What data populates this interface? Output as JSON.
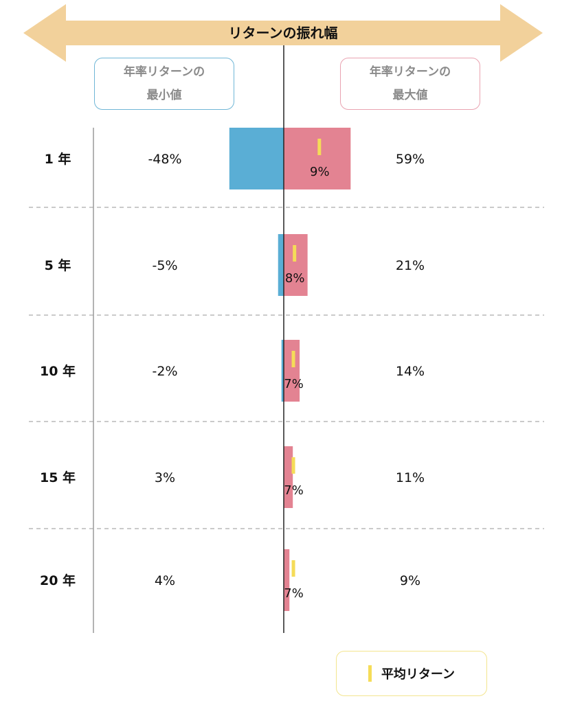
{
  "banner": {
    "title": "リターンの振れ幅"
  },
  "headers": {
    "min_line1": "年率リターンの",
    "min_line2": "最小値",
    "max_line1": "年率リターンの",
    "max_line2": "最大値"
  },
  "legend": {
    "label": "平均リターン"
  },
  "colors": {
    "banner": "#f2d19b",
    "min_bar": "#5aaed5",
    "max_bar": "#e38392",
    "avg_marker": "#f5dc58",
    "min_border": "#6fb6d6",
    "max_border": "#e9a2b0"
  },
  "chart_data": {
    "type": "bar",
    "orientation": "horizontal-diverging",
    "title": "リターンの振れ幅",
    "categories": [
      "1 年",
      "5 年",
      "10 年",
      "15 年",
      "20 年"
    ],
    "series": [
      {
        "name": "年率リターンの最小値",
        "values": [
          -48,
          -5,
          -2,
          3,
          4
        ],
        "labels": [
          "-48%",
          "-5%",
          "-2%",
          "3%",
          "4%"
        ]
      },
      {
        "name": "年率リターンの最大値",
        "values": [
          59,
          21,
          14,
          11,
          9
        ],
        "labels": [
          "59%",
          "21%",
          "14%",
          "11%",
          "9%"
        ]
      },
      {
        "name": "平均リターン",
        "values": [
          9,
          8,
          7,
          7,
          7
        ],
        "labels": [
          "9%",
          "8%",
          "7%",
          "7%",
          "7%"
        ]
      }
    ],
    "legend": "bottom-right"
  }
}
